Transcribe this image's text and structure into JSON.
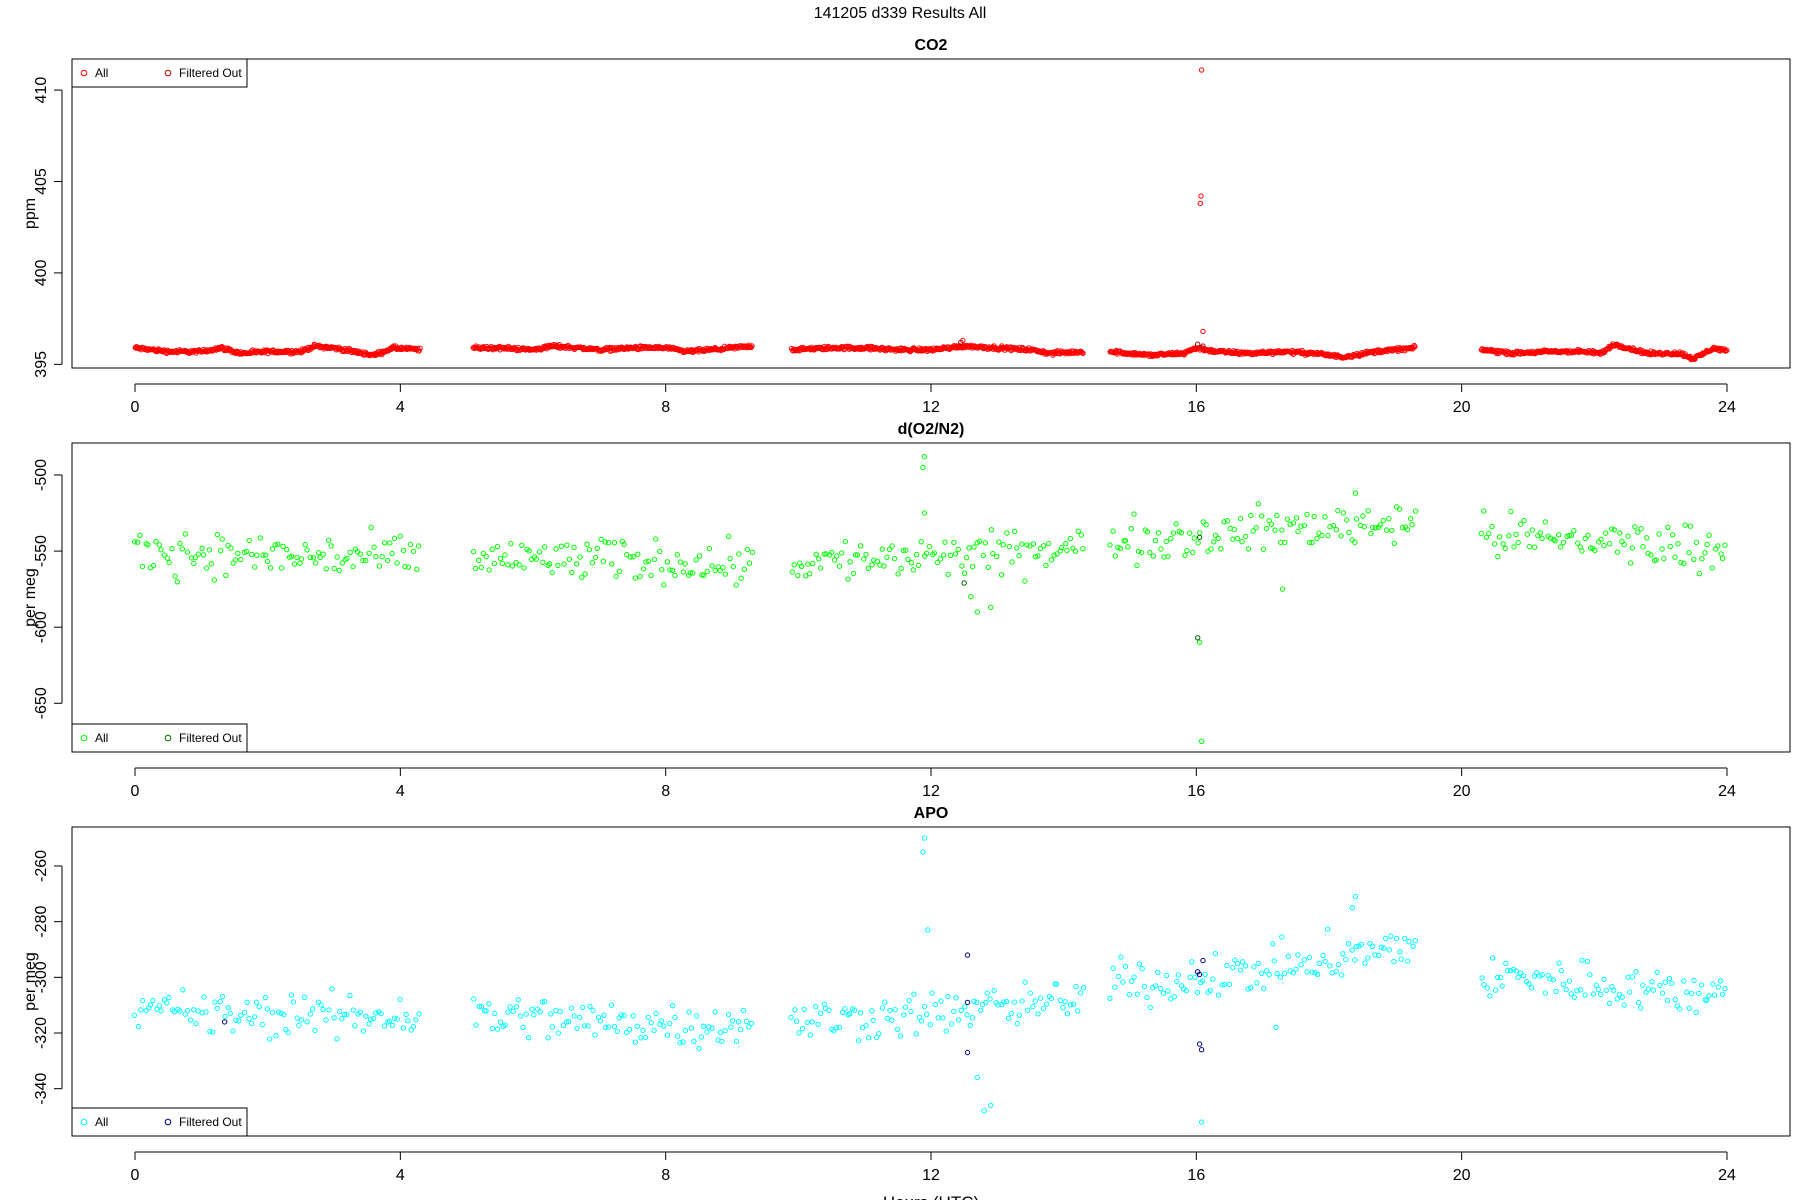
{
  "figure_title": "141205   d339   Results All",
  "shared_xlabel": "Hours (UTC)",
  "colors": {
    "co2_all": "#ff0000",
    "co2_filtered": "#b00000",
    "o2_all": "#00ff00",
    "o2_filtered": "#006400",
    "apo_all": "#00ffff",
    "apo_filtered": "#00008b"
  },
  "chart_data": [
    {
      "type": "scatter",
      "title": "CO2",
      "xlabel": "",
      "ylabel": "ppm",
      "xlim": [
        -0.95,
        24.95
      ],
      "ylim": [
        394.8,
        411.7
      ],
      "xticks": [
        0,
        4,
        8,
        12,
        16,
        20,
        24
      ],
      "yticks": [
        395,
        400,
        405,
        410
      ],
      "legend_position": "top-left",
      "segments": [
        [
          0.0,
          4.3
        ],
        [
          5.1,
          9.3
        ],
        [
          9.9,
          14.3
        ],
        [
          14.7,
          19.3
        ],
        [
          20.3,
          24.0
        ]
      ],
      "series": [
        {
          "name": "All",
          "color_key": "co2_all",
          "style": "dense",
          "anchors": [
            [
              0.0,
              395.9
            ],
            [
              0.5,
              395.7
            ],
            [
              1.0,
              395.7
            ],
            [
              1.3,
              395.9
            ],
            [
              1.6,
              395.6
            ],
            [
              2.0,
              395.7
            ],
            [
              2.5,
              395.7
            ],
            [
              2.7,
              396.0
            ],
            [
              3.0,
              395.9
            ],
            [
              3.3,
              395.7
            ],
            [
              3.6,
              395.5
            ],
            [
              3.9,
              395.9
            ],
            [
              4.3,
              395.8
            ],
            [
              5.1,
              395.9
            ],
            [
              5.5,
              395.9
            ],
            [
              6.0,
              395.8
            ],
            [
              6.3,
              396.0
            ],
            [
              6.7,
              395.9
            ],
            [
              7.0,
              395.8
            ],
            [
              7.5,
              395.9
            ],
            [
              8.0,
              395.9
            ],
            [
              8.3,
              395.7
            ],
            [
              8.7,
              395.8
            ],
            [
              9.0,
              395.9
            ],
            [
              9.3,
              396.0
            ],
            [
              9.9,
              395.8
            ],
            [
              10.5,
              395.9
            ],
            [
              11.0,
              395.9
            ],
            [
              11.5,
              395.8
            ],
            [
              12.0,
              395.8
            ],
            [
              12.5,
              396.0
            ],
            [
              13.0,
              395.9
            ],
            [
              13.5,
              395.8
            ],
            [
              13.8,
              395.6
            ],
            [
              14.3,
              395.7
            ],
            [
              14.7,
              395.7
            ],
            [
              15.3,
              395.5
            ],
            [
              15.8,
              395.6
            ],
            [
              16.0,
              395.9
            ],
            [
              16.3,
              395.7
            ],
            [
              16.8,
              395.6
            ],
            [
              17.3,
              395.7
            ],
            [
              17.8,
              395.6
            ],
            [
              18.2,
              395.4
            ],
            [
              18.7,
              395.7
            ],
            [
              19.3,
              395.9
            ],
            [
              20.3,
              395.8
            ],
            [
              20.8,
              395.6
            ],
            [
              21.3,
              395.7
            ],
            [
              21.8,
              395.7
            ],
            [
              22.1,
              395.6
            ],
            [
              22.3,
              396.1
            ],
            [
              22.8,
              395.6
            ],
            [
              23.3,
              395.6
            ],
            [
              23.5,
              395.3
            ],
            [
              23.8,
              395.9
            ],
            [
              24.0,
              395.7
            ]
          ],
          "noise": 0.08
        },
        {
          "name": "Filtered Out",
          "color_key": "co2_filtered",
          "points": [
            [
              12.45,
              396.2
            ],
            [
              16.02,
              396.1
            ],
            [
              16.1,
              396.0
            ]
          ]
        }
      ],
      "outliers": [
        [
          16.08,
          411.1
        ],
        [
          16.07,
          404.2
        ],
        [
          16.06,
          403.8
        ],
        [
          16.1,
          396.8
        ],
        [
          12.48,
          396.3
        ]
      ]
    },
    {
      "type": "scatter",
      "title": "d(O2/N2)",
      "xlabel": "",
      "ylabel": "per meg",
      "xlim": [
        -0.95,
        24.95
      ],
      "ylim": [
        -682,
        -479
      ],
      "xticks": [
        0,
        4,
        8,
        12,
        16,
        20,
        24
      ],
      "yticks": [
        -500,
        -550,
        -600,
        -650
      ],
      "legend_position": "bottom-left",
      "segments": [
        [
          0.0,
          4.3
        ],
        [
          5.1,
          9.3
        ],
        [
          9.9,
          14.3
        ],
        [
          14.7,
          19.3
        ],
        [
          20.3,
          24.0
        ]
      ],
      "series": [
        {
          "name": "All",
          "color_key": "o2_all",
          "style": "scatter",
          "anchors": [
            [
              0.0,
              -550
            ],
            [
              2.0,
              -553
            ],
            [
              4.3,
              -555
            ],
            [
              5.1,
              -555
            ],
            [
              7.0,
              -556
            ],
            [
              9.3,
              -558
            ],
            [
              9.9,
              -557
            ],
            [
              12.0,
              -555
            ],
            [
              14.3,
              -548
            ],
            [
              14.7,
              -543
            ],
            [
              16.0,
              -540
            ],
            [
              17.0,
              -536
            ],
            [
              18.5,
              -532
            ],
            [
              19.3,
              -528
            ],
            [
              20.3,
              -540
            ],
            [
              22.0,
              -543
            ],
            [
              23.5,
              -547
            ],
            [
              24.0,
              -545
            ]
          ],
          "noise": 7
        },
        {
          "name": "Filtered Out",
          "color_key": "o2_filtered",
          "points": [
            [
              16.05,
              -541
            ],
            [
              12.5,
              -571
            ],
            [
              16.02,
              -607
            ]
          ]
        }
      ],
      "outliers": [
        [
          11.9,
          -488
        ],
        [
          11.88,
          -495
        ],
        [
          11.9,
          -525
        ],
        [
          12.6,
          -580
        ],
        [
          12.7,
          -590
        ],
        [
          12.9,
          -587
        ],
        [
          16.05,
          -610
        ],
        [
          16.08,
          -675
        ],
        [
          18.4,
          -512
        ],
        [
          17.3,
          -575
        ]
      ]
    },
    {
      "type": "scatter",
      "title": "APO",
      "xlabel": "Hours (UTC)",
      "ylabel": "per meg",
      "xlim": [
        -0.95,
        24.95
      ],
      "ylim": [
        -357,
        -246
      ],
      "xticks": [
        0,
        4,
        8,
        12,
        16,
        20,
        24
      ],
      "yticks": [
        -260,
        -280,
        -300,
        -320,
        -340
      ],
      "legend_position": "bottom-left",
      "segments": [
        [
          0.0,
          4.3
        ],
        [
          5.1,
          9.3
        ],
        [
          9.9,
          14.3
        ],
        [
          14.7,
          19.3
        ],
        [
          20.3,
          24.0
        ]
      ],
      "series": [
        {
          "name": "All",
          "color_key": "apo_all",
          "style": "scatter",
          "anchors": [
            [
              0.0,
              -312
            ],
            [
              2.0,
              -314
            ],
            [
              4.3,
              -314
            ],
            [
              5.1,
              -313
            ],
            [
              7.0,
              -316
            ],
            [
              9.3,
              -317
            ],
            [
              9.9,
              -316
            ],
            [
              12.0,
              -313
            ],
            [
              14.3,
              -308
            ],
            [
              14.7,
              -302
            ],
            [
              16.0,
              -301
            ],
            [
              17.0,
              -297
            ],
            [
              18.5,
              -292
            ],
            [
              19.3,
              -288
            ],
            [
              20.3,
              -300
            ],
            [
              22.0,
              -302
            ],
            [
              23.5,
              -306
            ],
            [
              24.0,
              -303
            ]
          ],
          "noise": 4
        },
        {
          "name": "Filtered Out",
          "color_key": "apo_filtered",
          "points": [
            [
              1.35,
              -316
            ],
            [
              12.55,
              -292
            ],
            [
              12.55,
              -309
            ],
            [
              12.55,
              -327
            ],
            [
              16.05,
              -299
            ],
            [
              16.1,
              -294
            ],
            [
              16.05,
              -324
            ],
            [
              16.08,
              -326
            ],
            [
              16.02,
              -298
            ]
          ]
        }
      ],
      "outliers": [
        [
          11.9,
          -250
        ],
        [
          11.88,
          -255
        ],
        [
          11.95,
          -283
        ],
        [
          12.7,
          -336
        ],
        [
          12.8,
          -348
        ],
        [
          12.9,
          -346
        ],
        [
          16.08,
          -352
        ],
        [
          18.4,
          -271
        ],
        [
          18.35,
          -275
        ],
        [
          17.2,
          -318
        ]
      ]
    }
  ]
}
